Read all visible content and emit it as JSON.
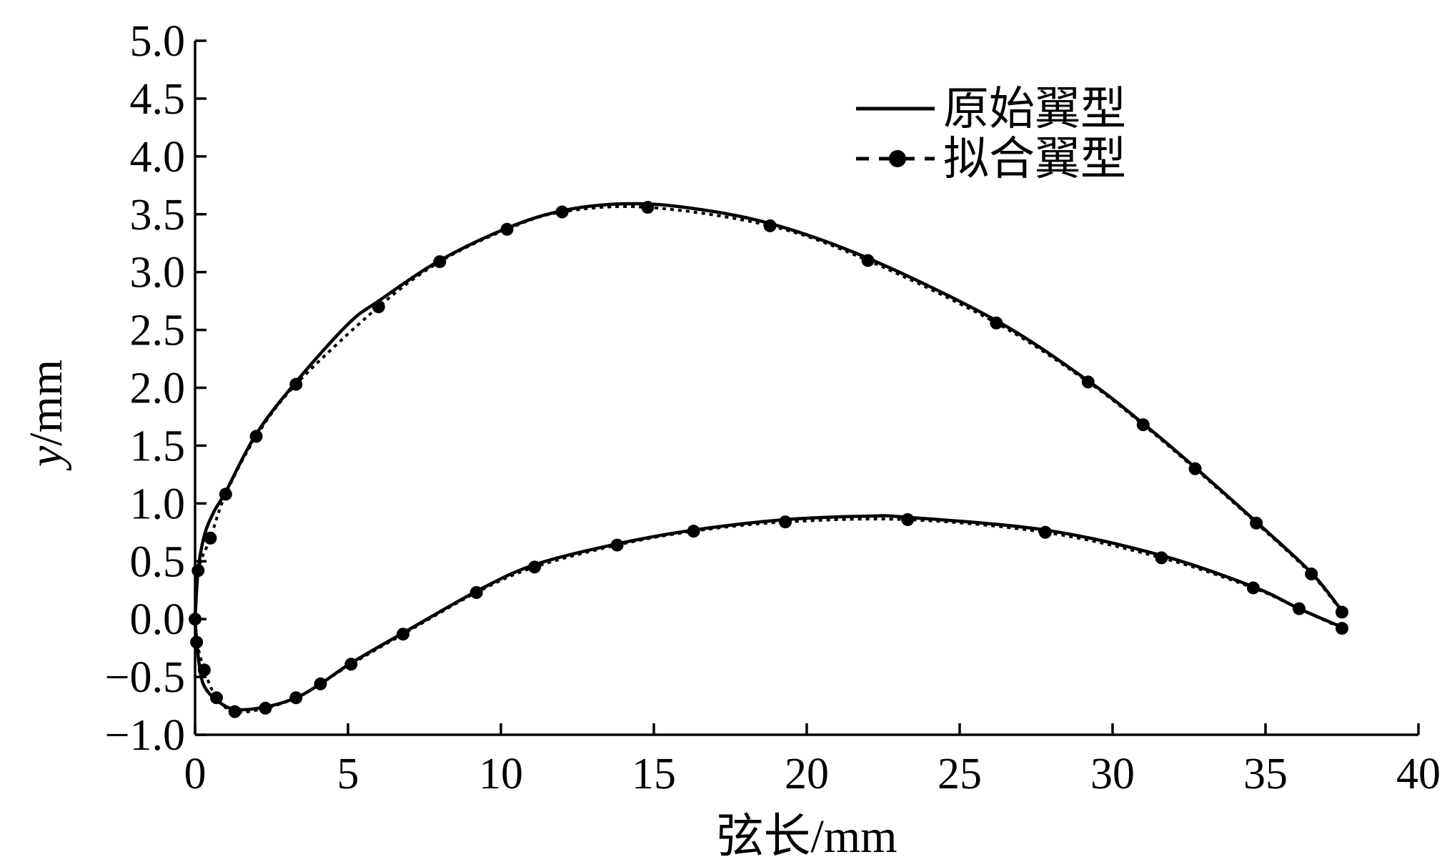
{
  "chart_data": {
    "type": "line",
    "title": "",
    "xlabel": "弦长/mm",
    "ylabel": "y/mm",
    "xlim": [
      0,
      40
    ],
    "ylim": [
      -1.0,
      5.0
    ],
    "x_ticks": [
      "0",
      "5",
      "10",
      "15",
      "20",
      "25",
      "30",
      "35",
      "40"
    ],
    "y_ticks": [
      "−1.0",
      "−0.5",
      "0.0",
      "0.5",
      "1.0",
      "1.5",
      "2.0",
      "2.5",
      "3.0",
      "3.5",
      "4.0",
      "4.5",
      "5.0"
    ],
    "grid": false,
    "legend_position": "top-right",
    "series": [
      {
        "name": "原始翼型",
        "style": "solid",
        "color": "#000000",
        "upper_surface": {
          "x": [
            0,
            0.1,
            0.3,
            0.6,
            1.0,
            2.0,
            3.3,
            5.0,
            6.0,
            8.0,
            10.2,
            12.0,
            14.0,
            16.0,
            18.8,
            22.0,
            26.2,
            29.2,
            31.0,
            32.7,
            34.7,
            36.5,
            37.5
          ],
          "y": [
            0.0,
            0.42,
            0.72,
            0.92,
            1.1,
            1.6,
            2.05,
            2.55,
            2.75,
            3.1,
            3.38,
            3.53,
            3.59,
            3.56,
            3.42,
            3.12,
            2.58,
            2.06,
            1.69,
            1.31,
            0.84,
            0.4,
            0.07
          ]
        },
        "lower_surface": {
          "x": [
            0,
            0.05,
            0.15,
            0.3,
            0.7,
            1.3,
            2.3,
            3.3,
            4.1,
            5.1,
            6.8,
            9.2,
            11.1,
            13.8,
            16.3,
            19.3,
            22.0,
            23.3,
            27.8,
            31.6,
            34.6,
            36.1,
            37.5
          ],
          "y": [
            0.0,
            -0.18,
            -0.42,
            -0.58,
            -0.7,
            -0.78,
            -0.76,
            -0.68,
            -0.56,
            -0.38,
            -0.12,
            0.24,
            0.47,
            0.65,
            0.77,
            0.86,
            0.89,
            0.88,
            0.77,
            0.55,
            0.28,
            0.09,
            -0.07
          ]
        }
      },
      {
        "name": "拟合翼型",
        "style": "dotted-with-markers",
        "color": "#000000",
        "upper_surface": {
          "x": [
            0,
            0.1,
            0.5,
            1.0,
            2.0,
            3.3,
            6.0,
            8.0,
            10.2,
            12.0,
            14.8,
            18.8,
            22.0,
            26.2,
            29.2,
            31.0,
            32.7,
            34.7,
            36.5,
            37.5
          ],
          "y": [
            0.0,
            0.42,
            0.7,
            1.08,
            1.58,
            2.03,
            2.7,
            3.09,
            3.37,
            3.52,
            3.56,
            3.4,
            3.1,
            2.56,
            2.05,
            1.68,
            1.3,
            0.83,
            0.39,
            0.06
          ]
        },
        "lower_surface": {
          "x": [
            0.05,
            0.3,
            0.7,
            1.3,
            2.3,
            3.3,
            4.1,
            5.1,
            6.8,
            9.2,
            11.1,
            13.8,
            16.3,
            19.3,
            23.3,
            27.8,
            31.6,
            34.6,
            36.1,
            37.5
          ],
          "y": [
            -0.2,
            -0.44,
            -0.68,
            -0.8,
            -0.77,
            -0.68,
            -0.56,
            -0.39,
            -0.13,
            0.23,
            0.45,
            0.64,
            0.76,
            0.84,
            0.86,
            0.75,
            0.53,
            0.27,
            0.09,
            -0.08
          ]
        }
      }
    ]
  }
}
